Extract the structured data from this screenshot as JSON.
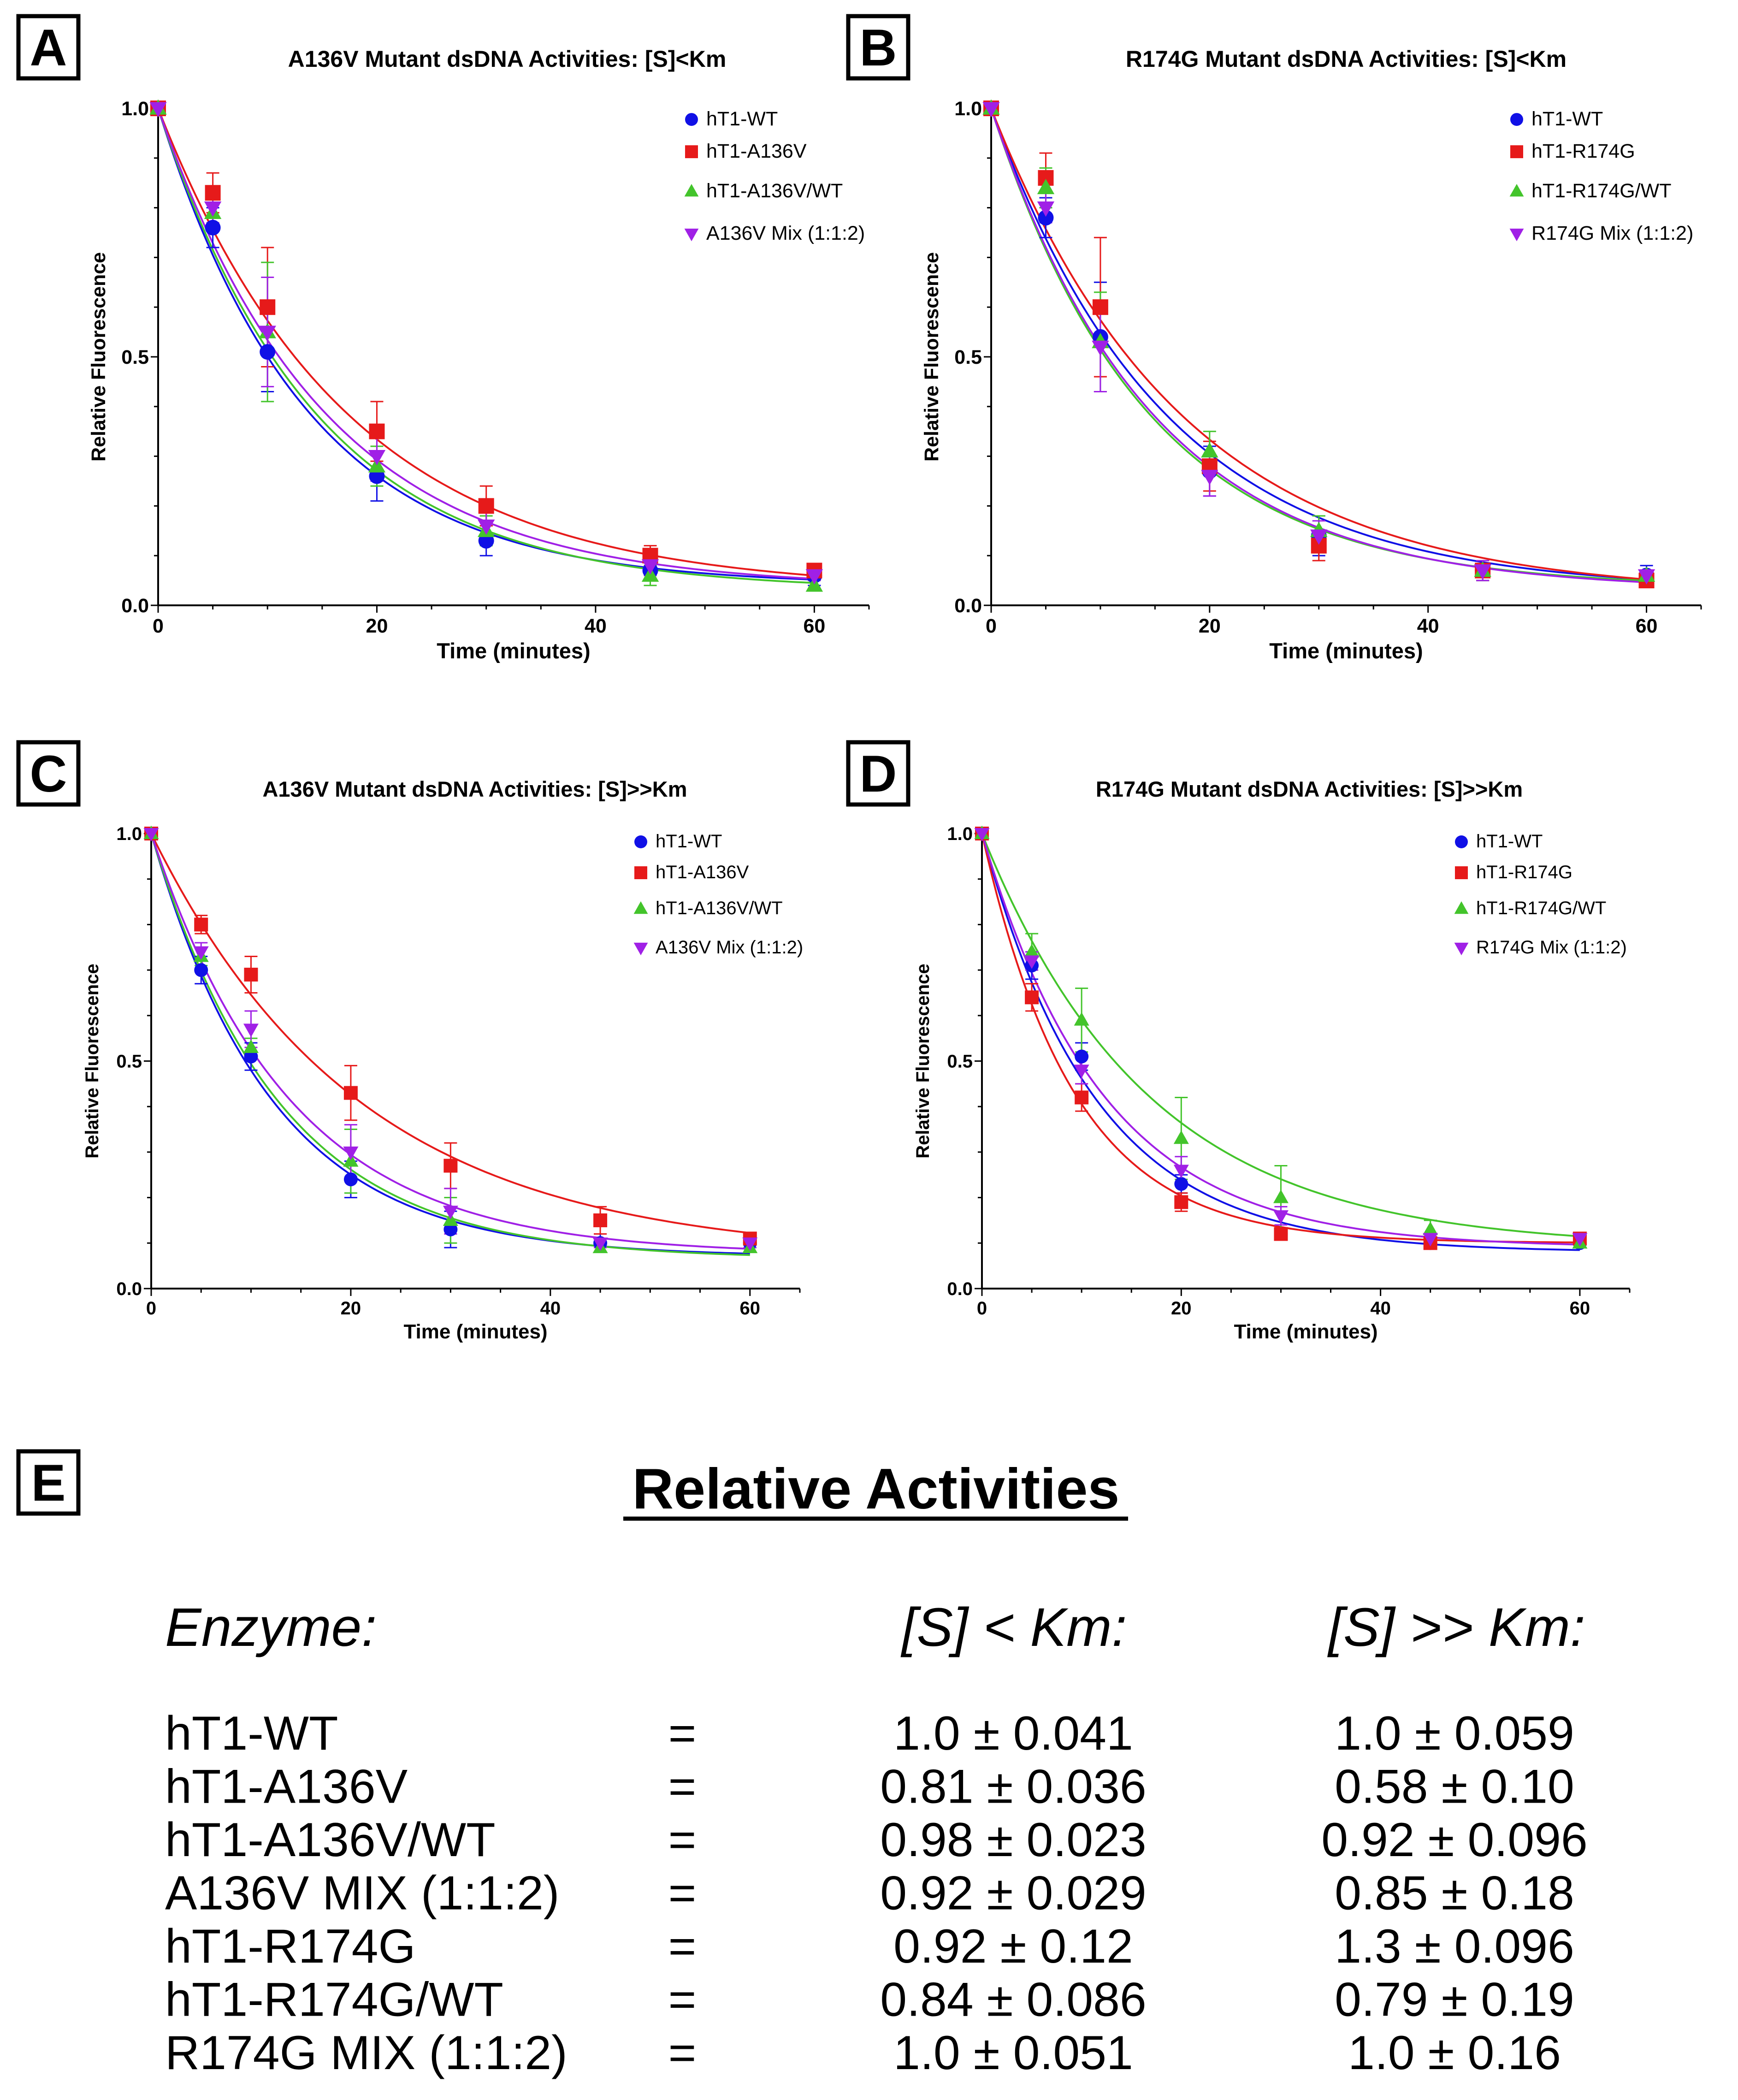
{
  "figure": {
    "panel_e": {
      "letter": "E",
      "heading": "Relative Activities",
      "columns": [
        "Enzyme:",
        "[S] < Km:",
        "[S] >> Km:"
      ],
      "rows": [
        {
          "enzyme": "hT1-WT",
          "eq": "=",
          "s_lt_km": "1.0 ± 0.041",
          "s_gg_km": "1.0 ± 0.059"
        },
        {
          "enzyme": "hT1-A136V",
          "eq": "=",
          "s_lt_km": "0.81 ± 0.036",
          "s_gg_km": "0.58 ± 0.10"
        },
        {
          "enzyme": "hT1-A136V/WT",
          "eq": "=",
          "s_lt_km": "0.98 ± 0.023",
          "s_gg_km": "0.92 ± 0.096"
        },
        {
          "enzyme": "A136V MIX (1:1:2)",
          "eq": "=",
          "s_lt_km": "0.92 ± 0.029",
          "s_gg_km": "0.85 ± 0.18"
        },
        {
          "enzyme": "hT1-R174G",
          "eq": "=",
          "s_lt_km": "0.92 ± 0.12",
          "s_gg_km": "1.3 ± 0.096"
        },
        {
          "enzyme": "hT1-R174G/WT",
          "eq": "=",
          "s_lt_km": "0.84 ± 0.086",
          "s_gg_km": "0.79 ± 0.19"
        },
        {
          "enzyme": "R174G MIX (1:1:2)",
          "eq": "=",
          "s_lt_km": "1.0 ± 0.051",
          "s_gg_km": "1.0 ± 0.16"
        }
      ]
    }
  },
  "chart_data": [
    {
      "panel": "A",
      "type": "scatter",
      "title": "A136V Mutant dsDNA Activities: [S]<Km",
      "xlabel": "Time (minutes)",
      "ylabel": "Relative Fluorescence",
      "xlim": [
        0,
        65
      ],
      "ylim": [
        0,
        1.0
      ],
      "xticks": [
        0,
        20,
        40,
        60
      ],
      "xtick_labels": [
        "0",
        "20",
        "40",
        "60"
      ],
      "yticks": [
        0,
        0.5,
        1.0
      ],
      "ytick_labels": [
        "0.0",
        "0.5",
        "1.0"
      ],
      "grid": false,
      "legend": "top-right",
      "x": [
        0,
        5,
        10,
        20,
        30,
        45,
        60
      ],
      "series": [
        {
          "name": "hT1-WT",
          "marker": "circle",
          "color": "#1010e6",
          "values": [
            1.0,
            0.76,
            0.51,
            0.26,
            0.13,
            0.07,
            0.06
          ],
          "errors": [
            0,
            0.04,
            0.08,
            0.05,
            0.03,
            0.02,
            0.02
          ],
          "fit": {
            "plateau": 0.04,
            "k": 0.0735
          }
        },
        {
          "name": "hT1-A136V",
          "marker": "square",
          "color": "#e61a1a",
          "values": [
            1.0,
            0.83,
            0.6,
            0.35,
            0.2,
            0.1,
            0.07
          ],
          "errors": [
            0,
            0.04,
            0.12,
            0.06,
            0.04,
            0.02,
            0.01
          ],
          "fit": {
            "plateau": 0.03,
            "k": 0.058
          }
        },
        {
          "name": "hT1-A136V/WT",
          "marker": "triangle-up",
          "color": "#43c42b",
          "values": [
            1.0,
            0.79,
            0.55,
            0.28,
            0.15,
            0.06,
            0.04
          ],
          "errors": [
            0,
            0.03,
            0.14,
            0.04,
            0.03,
            0.02,
            0.01
          ],
          "fit": {
            "plateau": 0.03,
            "k": 0.0695
          }
        },
        {
          "name": "A136V Mix (1:1:2)",
          "marker": "triangle-down",
          "color": "#a020e6",
          "values": [
            1.0,
            0.8,
            0.55,
            0.3,
            0.16,
            0.08,
            0.06
          ],
          "errors": [
            0,
            0.03,
            0.11,
            0.05,
            0.03,
            0.02,
            0.01
          ],
          "fit": {
            "plateau": 0.035,
            "k": 0.066
          }
        }
      ]
    },
    {
      "panel": "B",
      "type": "scatter",
      "title": "R174G Mutant dsDNA Activities: [S]<Km",
      "xlabel": "Time (minutes)",
      "ylabel": "Relative Fluorescence",
      "xlim": [
        0,
        65
      ],
      "ylim": [
        0,
        1.0
      ],
      "xticks": [
        0,
        20,
        40,
        60
      ],
      "xtick_labels": [
        "0",
        "20",
        "40",
        "60"
      ],
      "yticks": [
        0,
        0.5,
        1.0
      ],
      "ytick_labels": [
        "0.0",
        "0.5",
        "1.0"
      ],
      "grid": false,
      "legend": "top-right",
      "x": [
        0,
        5,
        10,
        20,
        30,
        45,
        60
      ],
      "series": [
        {
          "name": "hT1-WT",
          "marker": "circle",
          "color": "#1010e6",
          "values": [
            1.0,
            0.78,
            0.54,
            0.27,
            0.14,
            0.07,
            0.06
          ],
          "errors": [
            0,
            0.04,
            0.11,
            0.05,
            0.04,
            0.02,
            0.02
          ],
          "fit": {
            "plateau": 0.03,
            "k": 0.063
          }
        },
        {
          "name": "hT1-R174G",
          "marker": "square",
          "color": "#e61a1a",
          "values": [
            1.0,
            0.86,
            0.6,
            0.28,
            0.12,
            0.07,
            0.05
          ],
          "errors": [
            0,
            0.05,
            0.14,
            0.05,
            0.03,
            0.02,
            0.01
          ],
          "fit": {
            "plateau": 0.02,
            "k": 0.057
          }
        },
        {
          "name": "hT1-R174G/WT",
          "marker": "triangle-up",
          "color": "#43c42b",
          "values": [
            1.0,
            0.84,
            0.53,
            0.31,
            0.15,
            0.07,
            0.06
          ],
          "errors": [
            0,
            0.04,
            0.1,
            0.04,
            0.03,
            0.02,
            0.01
          ],
          "fit": {
            "plateau": 0.035,
            "k": 0.07
          }
        },
        {
          "name": "R174G Mix (1:1:2)",
          "marker": "triangle-down",
          "color": "#a020e6",
          "values": [
            1.0,
            0.8,
            0.52,
            0.26,
            0.14,
            0.07,
            0.06
          ],
          "errors": [
            0,
            0.03,
            0.09,
            0.04,
            0.03,
            0.02,
            0.01
          ],
          "fit": {
            "plateau": 0.03,
            "k": 0.068
          }
        }
      ]
    },
    {
      "panel": "C",
      "type": "scatter",
      "title": "A136V Mutant dsDNA Activities: [S]>>Km",
      "xlabel": "Time (minutes)",
      "ylabel": "Relative Fluorescence",
      "xlim": [
        0,
        65
      ],
      "ylim": [
        0,
        1.0
      ],
      "xticks": [
        0,
        20,
        40,
        60
      ],
      "xtick_labels": [
        "0",
        "20",
        "40",
        "60"
      ],
      "yticks": [
        0,
        0.5,
        1.0
      ],
      "ytick_labels": [
        "0.0",
        "0.5",
        "1.0"
      ],
      "grid": false,
      "legend": "top-right",
      "x": [
        0,
        5,
        10,
        20,
        30,
        45,
        60
      ],
      "series": [
        {
          "name": "hT1-WT",
          "marker": "circle",
          "color": "#1010e6",
          "values": [
            1.0,
            0.7,
            0.51,
            0.24,
            0.13,
            0.1,
            0.1
          ],
          "errors": [
            0,
            0.03,
            0.03,
            0.04,
            0.04,
            0.02,
            0.01
          ],
          "fit": {
            "plateau": 0.07,
            "k": 0.082
          }
        },
        {
          "name": "hT1-A136V",
          "marker": "square",
          "color": "#e61a1a",
          "values": [
            1.0,
            0.8,
            0.69,
            0.43,
            0.27,
            0.15,
            0.11
          ],
          "errors": [
            0,
            0.02,
            0.04,
            0.06,
            0.05,
            0.03,
            0.01
          ],
          "fit": {
            "plateau": 0.07,
            "k": 0.048
          }
        },
        {
          "name": "hT1-A136V/WT",
          "marker": "triangle-up",
          "color": "#43c42b",
          "values": [
            1.0,
            0.73,
            0.53,
            0.28,
            0.15,
            0.09,
            0.09
          ],
          "errors": [
            0,
            0.02,
            0.02,
            0.07,
            0.05,
            0.01,
            0.01
          ],
          "fit": {
            "plateau": 0.065,
            "k": 0.078
          }
        },
        {
          "name": "A136V Mix (1:1:2)",
          "marker": "triangle-down",
          "color": "#a020e6",
          "values": [
            1.0,
            0.74,
            0.57,
            0.3,
            0.17,
            0.1,
            0.1
          ],
          "errors": [
            0,
            0.02,
            0.04,
            0.06,
            0.05,
            0.01,
            0.01
          ],
          "fit": {
            "plateau": 0.075,
            "k": 0.072
          }
        }
      ]
    },
    {
      "panel": "D",
      "type": "scatter",
      "title": "R174G Mutant dsDNA Activities: [S]>>Km",
      "xlabel": "Time (minutes)",
      "ylabel": "Relative Fluorescence",
      "xlim": [
        0,
        65
      ],
      "ylim": [
        0,
        1.0
      ],
      "xticks": [
        0,
        20,
        40,
        60
      ],
      "xtick_labels": [
        "0",
        "20",
        "40",
        "60"
      ],
      "yticks": [
        0,
        0.5,
        1.0
      ],
      "ytick_labels": [
        "0.0",
        "0.5",
        "1.0"
      ],
      "grid": false,
      "legend": "top-right",
      "x": [
        0,
        5,
        10,
        20,
        30,
        45,
        60
      ],
      "series": [
        {
          "name": "hT1-WT",
          "marker": "circle",
          "color": "#1010e6",
          "values": [
            1.0,
            0.71,
            0.51,
            0.23,
            0.12,
            0.1,
            0.1
          ],
          "errors": [
            0,
            0.03,
            0.03,
            0.02,
            0.01,
            0.01,
            0.01
          ],
          "fit": {
            "plateau": 0.08,
            "k": 0.088
          }
        },
        {
          "name": "hT1-R174G",
          "marker": "square",
          "color": "#e61a1a",
          "values": [
            1.0,
            0.64,
            0.42,
            0.19,
            0.12,
            0.1,
            0.11
          ],
          "errors": [
            0,
            0.03,
            0.03,
            0.02,
            0.01,
            0.01,
            0.01
          ],
          "fit": {
            "plateau": 0.1,
            "k": 0.108
          }
        },
        {
          "name": "hT1-R174G/WT",
          "marker": "triangle-up",
          "color": "#43c42b",
          "values": [
            1.0,
            0.74,
            0.59,
            0.33,
            0.2,
            0.13,
            0.1
          ],
          "errors": [
            0,
            0.04,
            0.07,
            0.09,
            0.07,
            0.02,
            0.01
          ],
          "fit": {
            "plateau": 0.09,
            "k": 0.06
          }
        },
        {
          "name": "R174G Mix (1:1:2)",
          "marker": "triangle-down",
          "color": "#a020e6",
          "values": [
            1.0,
            0.72,
            0.48,
            0.26,
            0.16,
            0.11,
            0.11
          ],
          "errors": [
            0,
            0.02,
            0.03,
            0.03,
            0.02,
            0.01,
            0.01
          ],
          "fit": {
            "plateau": 0.09,
            "k": 0.082
          }
        }
      ]
    }
  ]
}
